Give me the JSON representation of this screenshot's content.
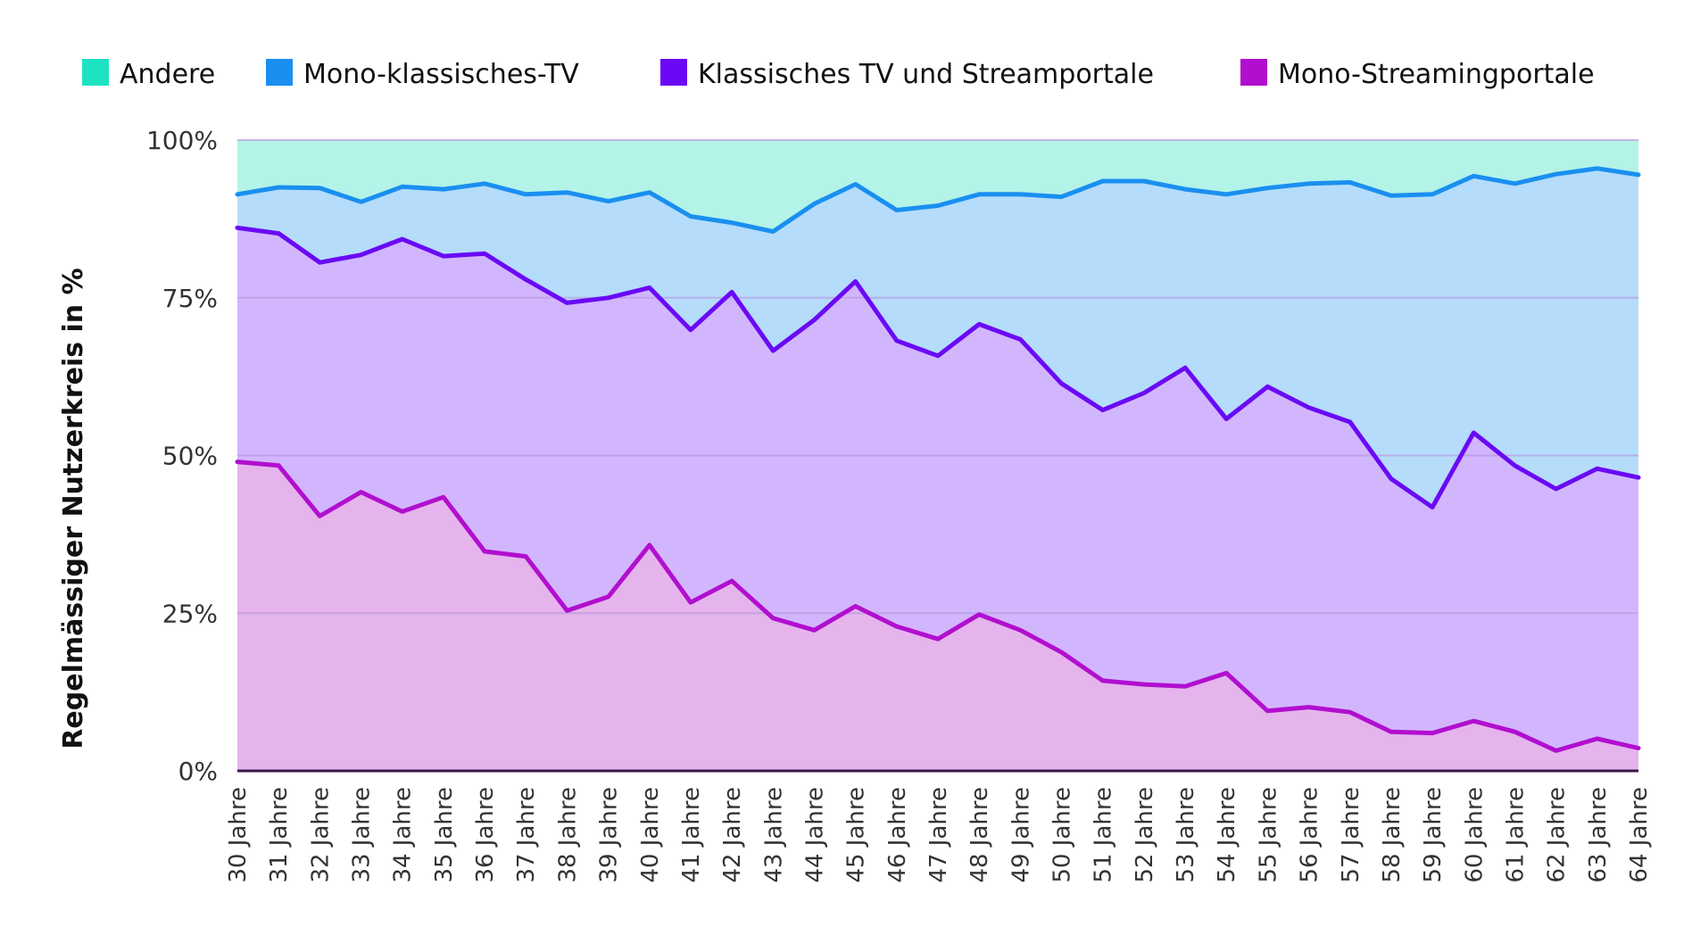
{
  "chart_data": {
    "type": "area",
    "stacked": true,
    "title": "",
    "xlabel": "",
    "ylabel": "Regelmässiger Nutzerkreis in %",
    "ylim": [
      0,
      100
    ],
    "yticks": [
      "0%",
      "25%",
      "50%",
      "75%",
      "100%"
    ],
    "ytick_values": [
      0,
      25,
      50,
      75,
      100
    ],
    "grid": true,
    "legend_position": "top",
    "categories": [
      "30 Jahre",
      "31 Jahre",
      "32 Jahre",
      "33 Jahre",
      "34 Jahre",
      "35 Jahre",
      "36 Jahre",
      "37 Jahre",
      "38 Jahre",
      "39 Jahre",
      "40 Jahre",
      "41 Jahre",
      "42 Jahre",
      "43 Jahre",
      "44 Jahre",
      "45 Jahre",
      "46 Jahre",
      "47 Jahre",
      "48 Jahre",
      "49 Jahre",
      "50 Jahre",
      "51 Jahre",
      "52 Jahre",
      "53 Jahre",
      "54 Jahre",
      "55 Jahre",
      "56 Jahre",
      "57 Jahre",
      "58 Jahre",
      "59 Jahre",
      "60 Jahre",
      "61 Jahre",
      "62 Jahre",
      "63 Jahre",
      "64 Jahre"
    ],
    "boundary_lines": [
      {
        "name": "Mono-Streamingportale",
        "color": "#b10fcf",
        "values": [
          49,
          48.4,
          40.4,
          44.2,
          41.1,
          43.4,
          34.8,
          34,
          25.4,
          27.6,
          35.8,
          26.7,
          30.1,
          24.2,
          22.3,
          26.1,
          22.9,
          20.9,
          24.8,
          22.3,
          18.8,
          14.3,
          13.7,
          13.4,
          15.5,
          9.5,
          10.1,
          9.3,
          6.2,
          6,
          7.9,
          6.2,
          3.2,
          5.1,
          3.6
        ]
      },
      {
        "name": "Klassisches TV und Streamportale",
        "color": "#6a0af5",
        "values": [
          86.1,
          85.2,
          80.6,
          81.8,
          84.3,
          81.6,
          82,
          77.9,
          74.2,
          75,
          76.6,
          69.9,
          75.9,
          66.6,
          71.5,
          77.6,
          68.2,
          65.8,
          70.8,
          68.4,
          61.4,
          57.2,
          59.9,
          63.9,
          55.8,
          60.9,
          57.6,
          55.3,
          46.3,
          41.8,
          53.6,
          48.4,
          44.7,
          47.9,
          46.5
        ]
      },
      {
        "name": "Mono-klassisches-TV",
        "color": "#1a8ff0",
        "values": [
          91.4,
          92.5,
          92.4,
          90.2,
          92.6,
          92.2,
          93.1,
          91.4,
          91.7,
          90.3,
          91.7,
          87.9,
          86.9,
          85.5,
          89.9,
          93,
          88.9,
          89.6,
          91.4,
          91.4,
          91,
          93.5,
          93.5,
          92.2,
          91.4,
          92.4,
          93.1,
          93.3,
          91.2,
          91.4,
          94.3,
          93.1,
          94.6,
          95.5,
          94.5
        ]
      },
      {
        "name": "Andere",
        "color": "#b3f3e8",
        "values": [
          100,
          100,
          100,
          100,
          100,
          100,
          100,
          100,
          100,
          100,
          100,
          100,
          100,
          100,
          100,
          100,
          100,
          100,
          100,
          100,
          100,
          100,
          100,
          100,
          100,
          100,
          100,
          100,
          100,
          100,
          100,
          100,
          100,
          100,
          100
        ]
      }
    ],
    "legend": [
      {
        "name": "Andere",
        "color": "#1de3c3"
      },
      {
        "name": "Mono-klassisches-TV",
        "color": "#1a8ff0"
      },
      {
        "name": "Klassisches TV und Streamportale",
        "color": "#6a0af5"
      },
      {
        "name": "Mono-Streamingportale",
        "color": "#b10fcf"
      }
    ],
    "fill_colors": [
      "#e5b4ec",
      "#d2b6fd",
      "#b5dcfb",
      "#b3f3e8"
    ],
    "axis_color": "#3a1a4a",
    "grid_color": "#b79be0"
  }
}
